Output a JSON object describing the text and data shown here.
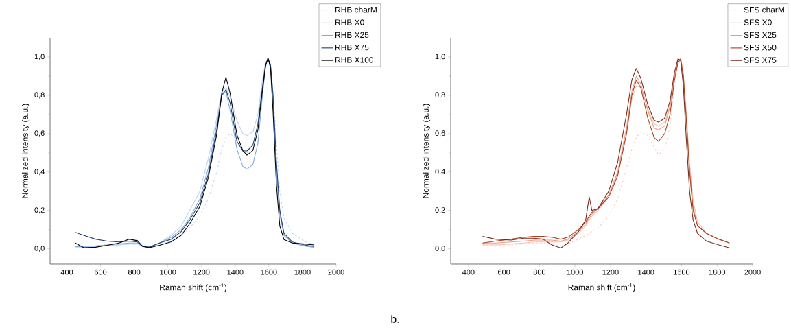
{
  "chart_data": [
    {
      "type": "line",
      "xlabel": "Raman shift (cm$^{-1}$)",
      "ylabel": "Normalized intensity (a.u.)",
      "legend": "top right",
      "x": [
        450,
        500,
        570,
        640,
        710,
        770,
        820,
        850,
        890,
        950,
        1020,
        1080,
        1130,
        1190,
        1240,
        1290,
        1320,
        1345,
        1370,
        1410,
        1445,
        1470,
        1505,
        1535,
        1560,
        1580,
        1595,
        1610,
        1625,
        1645,
        1665,
        1690,
        1740,
        1810,
        1870
      ],
      "xlim": [
        300,
        2000
      ],
      "xticks": [
        400,
        600,
        800,
        1000,
        1200,
        1400,
        1600,
        1800,
        2000
      ],
      "ylim": [
        -0.08,
        1.1
      ],
      "yticks": [
        {
          "value": 0,
          "label": "0,0"
        },
        {
          "value": 0.2,
          "label": "0,2"
        },
        {
          "value": 0.4,
          "label": "0,4"
        },
        {
          "value": 0.6,
          "label": "0,6"
        },
        {
          "value": 0.8,
          "label": "0,8"
        },
        {
          "value": 1,
          "label": "1,0"
        }
      ],
      "annotations": [
        "b."
      ],
      "series": [
        {
          "name": "RHB charM",
          "color": "#c8d6ee",
          "line_style": "dashed",
          "values": [
            0.005,
            0.008,
            0.012,
            0.018,
            0.02,
            0.025,
            0.025,
            0.012,
            0.01,
            0.02,
            0.04,
            0.07,
            0.11,
            0.17,
            0.26,
            0.4,
            0.52,
            0.58,
            0.6,
            0.57,
            0.52,
            0.5,
            0.54,
            0.66,
            0.85,
            0.96,
            0.99,
            0.95,
            0.82,
            0.55,
            0.3,
            0.16,
            0.08,
            0.04,
            0.02
          ]
        },
        {
          "name": "RHB X0",
          "color": "#bdd3ee",
          "line_style": "solid",
          "values": [
            0.005,
            0.008,
            0.012,
            0.018,
            0.02,
            0.025,
            0.025,
            0.012,
            0.01,
            0.03,
            0.07,
            0.12,
            0.2,
            0.3,
            0.47,
            0.68,
            0.82,
            0.84,
            0.79,
            0.67,
            0.6,
            0.59,
            0.61,
            0.7,
            0.87,
            0.97,
            0.99,
            0.96,
            0.8,
            0.45,
            0.2,
            0.07,
            0.03,
            0.015,
            0.008
          ]
        },
        {
          "name": "RHB X25",
          "color": "#7ea9e0",
          "line_style": "solid",
          "values": [
            0.01,
            0.012,
            0.015,
            0.02,
            0.025,
            0.03,
            0.03,
            0.015,
            0.01,
            0.03,
            0.06,
            0.1,
            0.16,
            0.26,
            0.42,
            0.65,
            0.8,
            0.82,
            0.72,
            0.52,
            0.43,
            0.415,
            0.44,
            0.55,
            0.78,
            0.95,
            0.995,
            0.95,
            0.75,
            0.4,
            0.18,
            0.07,
            0.03,
            0.015,
            0.008
          ]
        },
        {
          "name": "RHB X75",
          "color": "#1f3f73",
          "line_style": "solid",
          "values": [
            0.085,
            0.07,
            0.05,
            0.04,
            0.035,
            0.04,
            0.035,
            0.012,
            0.008,
            0.03,
            0.05,
            0.09,
            0.15,
            0.24,
            0.39,
            0.62,
            0.8,
            0.83,
            0.76,
            0.56,
            0.51,
            0.51,
            0.54,
            0.65,
            0.83,
            0.96,
            0.99,
            0.96,
            0.8,
            0.45,
            0.2,
            0.08,
            0.035,
            0.02,
            0.012
          ]
        },
        {
          "name": "RHB X100",
          "color": "#000000",
          "line_style": "solid",
          "values": [
            0.03,
            0.006,
            0.008,
            0.018,
            0.03,
            0.05,
            0.042,
            0.012,
            0.006,
            0.018,
            0.036,
            0.071,
            0.131,
            0.22,
            0.37,
            0.595,
            0.81,
            0.895,
            0.81,
            0.595,
            0.512,
            0.488,
            0.512,
            0.62,
            0.81,
            0.95,
            0.995,
            0.94,
            0.714,
            0.333,
            0.119,
            0.048,
            0.03,
            0.025,
            0.02
          ]
        }
      ]
    },
    {
      "type": "line",
      "xlabel": "Raman shift (cm$^{-1}$)",
      "ylabel": "Normalized intensity (a.u.)",
      "legend": "top right",
      "x": [
        480,
        550,
        640,
        710,
        770,
        820,
        870,
        920,
        960,
        1020,
        1060,
        1080,
        1095,
        1130,
        1190,
        1240,
        1290,
        1320,
        1345,
        1370,
        1410,
        1445,
        1470,
        1505,
        1535,
        1560,
        1580,
        1595,
        1610,
        1625,
        1645,
        1665,
        1690,
        1740,
        1810,
        1870
      ],
      "xlim": [
        300,
        2000
      ],
      "xticks": [
        400,
        600,
        800,
        1000,
        1200,
        1400,
        1600,
        1800,
        2000
      ],
      "ylim": [
        -0.08,
        1.1
      ],
      "yticks": [
        {
          "value": 0,
          "label": "0,0"
        },
        {
          "value": 0.2,
          "label": "0,2"
        },
        {
          "value": 0.4,
          "label": "0,4"
        },
        {
          "value": 0.6,
          "label": "0,6"
        },
        {
          "value": 0.8,
          "label": "0,8"
        },
        {
          "value": 1,
          "label": "1,0"
        }
      ],
      "series": [
        {
          "name": "SFS charM",
          "color": "#f5cfc4",
          "line_style": "dashed",
          "values": [
            0.02,
            0.02,
            0.02,
            0.025,
            0.03,
            0.03,
            0.02,
            0.015,
            0.025,
            0.05,
            0.07,
            0.08,
            0.09,
            0.11,
            0.17,
            0.26,
            0.42,
            0.52,
            0.58,
            0.61,
            0.59,
            0.53,
            0.49,
            0.52,
            0.64,
            0.85,
            0.96,
            0.98,
            0.9,
            0.72,
            0.45,
            0.25,
            0.14,
            0.08,
            0.05,
            0.03
          ]
        },
        {
          "name": "SFS X0",
          "color": "#f2c4b4",
          "line_style": "solid",
          "values": [
            0.02,
            0.02,
            0.025,
            0.03,
            0.035,
            0.035,
            0.035,
            0.035,
            0.045,
            0.08,
            0.12,
            0.15,
            0.17,
            0.2,
            0.27,
            0.39,
            0.6,
            0.78,
            0.85,
            0.84,
            0.73,
            0.65,
            0.64,
            0.66,
            0.75,
            0.9,
            0.98,
            0.99,
            0.92,
            0.74,
            0.45,
            0.25,
            0.14,
            0.08,
            0.05,
            0.03
          ]
        },
        {
          "name": "SFS X25",
          "color": "#ea9a80",
          "line_style": "solid",
          "values": [
            0.03,
            0.03,
            0.035,
            0.04,
            0.045,
            0.045,
            0.045,
            0.04,
            0.05,
            0.09,
            0.13,
            0.16,
            0.18,
            0.21,
            0.28,
            0.4,
            0.63,
            0.82,
            0.9,
            0.86,
            0.72,
            0.63,
            0.62,
            0.64,
            0.74,
            0.9,
            0.98,
            0.99,
            0.9,
            0.7,
            0.42,
            0.22,
            0.12,
            0.08,
            0.05,
            0.03
          ]
        },
        {
          "name": "SFS X50",
          "color": "#a8401f",
          "line_style": "solid",
          "values": [
            0.03,
            0.04,
            0.05,
            0.06,
            0.065,
            0.065,
            0.06,
            0.05,
            0.06,
            0.1,
            0.14,
            0.17,
            0.19,
            0.21,
            0.27,
            0.38,
            0.6,
            0.8,
            0.88,
            0.84,
            0.68,
            0.58,
            0.56,
            0.6,
            0.7,
            0.88,
            0.97,
            0.99,
            0.9,
            0.7,
            0.4,
            0.2,
            0.12,
            0.08,
            0.05,
            0.03
          ]
        },
        {
          "name": "SFS X75",
          "color": "#7b2a1a",
          "line_style": "solid",
          "values": [
            0.065,
            0.05,
            0.045,
            0.055,
            0.055,
            0.05,
            0.02,
            0.004,
            0.03,
            0.09,
            0.15,
            0.27,
            0.2,
            0.21,
            0.3,
            0.45,
            0.7,
            0.88,
            0.94,
            0.89,
            0.75,
            0.67,
            0.66,
            0.68,
            0.77,
            0.92,
            0.99,
            0.98,
            0.85,
            0.6,
            0.3,
            0.15,
            0.08,
            0.04,
            0.02,
            0.005
          ]
        }
      ]
    }
  ]
}
